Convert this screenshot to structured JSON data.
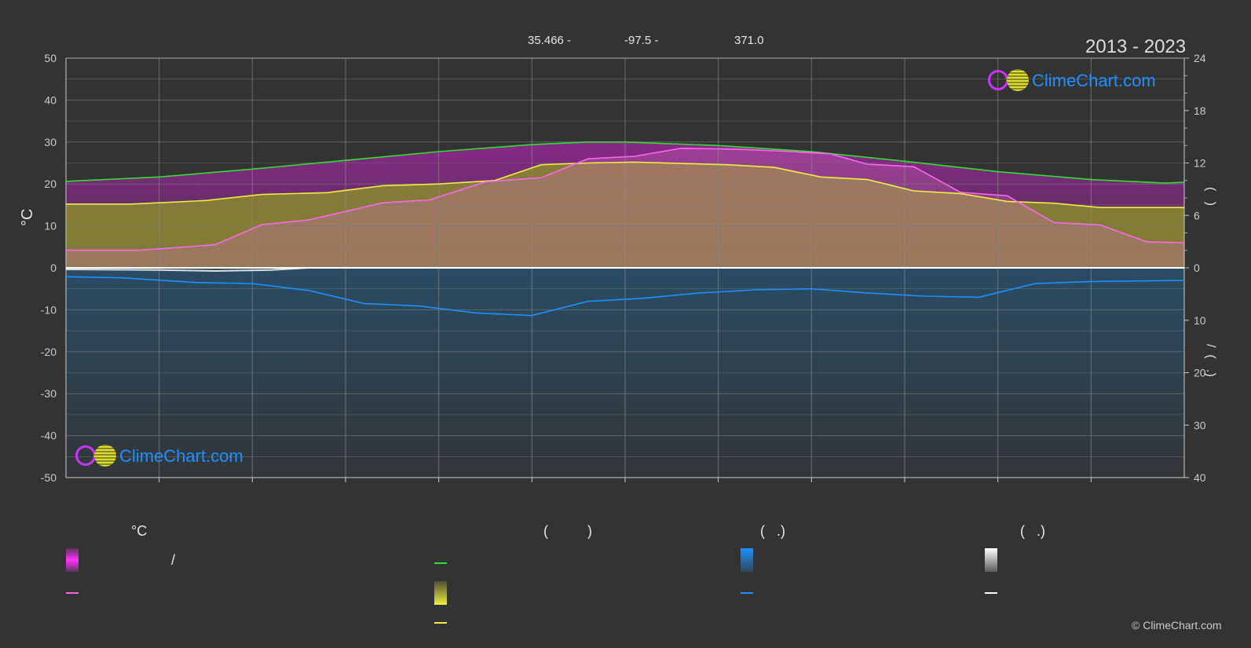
{
  "header": {
    "lat_text": "35.466 -",
    "lon_text": "-97.5 -",
    "elev_text": "371.0",
    "period": "2013 - 2023"
  },
  "brand": {
    "logo_text": "ClimeChart.com",
    "copyright": "© ClimeChart.com"
  },
  "axes": {
    "left_unit": "°C",
    "right_labels_upper": "(   )",
    "right_labels_lower": "/  (   .)"
  },
  "legend": {
    "col1_title": "°C",
    "col1_item1": "/",
    "col2_title": "(          )",
    "col3_title": "(   .)",
    "col4_title": "(   .)"
  },
  "colors": {
    "background": "#333333",
    "grid": "#888888",
    "daylight": "#33dd33",
    "sunshine": "#eeee44",
    "temp_mean": "#ff66ee",
    "temp_band": "#ff33ff",
    "precip": "#1e90ff",
    "snow": "#dddddd",
    "brand": "#1e90ff"
  },
  "chart_data": {
    "type": "line",
    "ylim_left": [
      -50,
      50
    ],
    "ylim_right_hours": [
      0,
      24
    ],
    "ylim_right_precip_mm": [
      0,
      40
    ],
    "left_ticks": [
      50,
      40,
      30,
      20,
      10,
      0,
      -10,
      -20,
      -30,
      -40,
      -50
    ],
    "right_ticks_upper": [
      24,
      18,
      12,
      6,
      0
    ],
    "right_ticks_lower": [
      10,
      20,
      30,
      40
    ],
    "x_months": 12,
    "grid": true,
    "series": [
      {
        "key": "daylight_hours",
        "axis": "hours",
        "points": [
          [
            0,
            9.9
          ],
          [
            1,
            10.4
          ],
          [
            2,
            11.3
          ],
          [
            3,
            12.3
          ],
          [
            4,
            13.3
          ],
          [
            5,
            14.1
          ],
          [
            5.6,
            14.4
          ],
          [
            6,
            14.4
          ],
          [
            7,
            14.0
          ],
          [
            8,
            13.3
          ],
          [
            9,
            12.2
          ],
          [
            10,
            11.0
          ],
          [
            11,
            10.1
          ],
          [
            11.8,
            9.7
          ],
          [
            12,
            9.8
          ]
        ]
      },
      {
        "key": "sunshine_hours",
        "axis": "hours",
        "points": [
          [
            0,
            7.3
          ],
          [
            0.7,
            7.3
          ],
          [
            1.5,
            7.7
          ],
          [
            2.1,
            8.4
          ],
          [
            2.8,
            8.6
          ],
          [
            3.4,
            9.4
          ],
          [
            4,
            9.6
          ],
          [
            4.6,
            10.0
          ],
          [
            5.1,
            11.8
          ],
          [
            5.6,
            12.0
          ],
          [
            6.1,
            12.1
          ],
          [
            7.1,
            11.8
          ],
          [
            7.6,
            11.5
          ],
          [
            8.1,
            10.4
          ],
          [
            8.6,
            10.1
          ],
          [
            9.1,
            8.8
          ],
          [
            9.6,
            8.5
          ],
          [
            10.1,
            7.6
          ],
          [
            10.6,
            7.4
          ],
          [
            11.1,
            6.9
          ],
          [
            12,
            6.9
          ]
        ]
      },
      {
        "key": "mean_temp",
        "axis": "temp",
        "points": [
          [
            0,
            4.2
          ],
          [
            0.8,
            4.2
          ],
          [
            1.6,
            5.5
          ],
          [
            2.1,
            10.3
          ],
          [
            2.6,
            11.4
          ],
          [
            3.4,
            15.5
          ],
          [
            3.9,
            16.2
          ],
          [
            4.5,
            20.5
          ],
          [
            5.1,
            21.5
          ],
          [
            5.6,
            26.0
          ],
          [
            6.1,
            26.6
          ],
          [
            6.6,
            28.5
          ],
          [
            7.2,
            28.3
          ],
          [
            7.7,
            27.8
          ],
          [
            8.2,
            27.2
          ],
          [
            8.6,
            24.7
          ],
          [
            9.1,
            24.1
          ],
          [
            9.6,
            18.0
          ],
          [
            10.1,
            17.2
          ],
          [
            10.6,
            10.8
          ],
          [
            11.1,
            10.2
          ],
          [
            11.6,
            6.2
          ],
          [
            12,
            6.0
          ]
        ]
      },
      {
        "key": "mean_precip",
        "axis": "precip",
        "points": [
          [
            0,
            1.7
          ],
          [
            0.6,
            1.9
          ],
          [
            1.4,
            2.8
          ],
          [
            2.0,
            3.0
          ],
          [
            2.6,
            4.3
          ],
          [
            3.2,
            6.8
          ],
          [
            3.8,
            7.3
          ],
          [
            4.4,
            8.6
          ],
          [
            5.0,
            9.1
          ],
          [
            5.6,
            6.4
          ],
          [
            6.2,
            5.8
          ],
          [
            6.8,
            4.8
          ],
          [
            7.4,
            4.2
          ],
          [
            8.0,
            4.0
          ],
          [
            8.6,
            4.8
          ],
          [
            9.2,
            5.4
          ],
          [
            9.8,
            5.6
          ],
          [
            10.4,
            3.0
          ],
          [
            11.0,
            2.6
          ],
          [
            12,
            2.4
          ]
        ]
      },
      {
        "key": "snow",
        "axis": "precip",
        "points": [
          [
            0,
            0.3
          ],
          [
            1.0,
            0.4
          ],
          [
            1.6,
            0.6
          ],
          [
            2.2,
            0.4
          ],
          [
            2.6,
            0.0
          ],
          [
            12,
            0.0
          ]
        ]
      }
    ]
  }
}
